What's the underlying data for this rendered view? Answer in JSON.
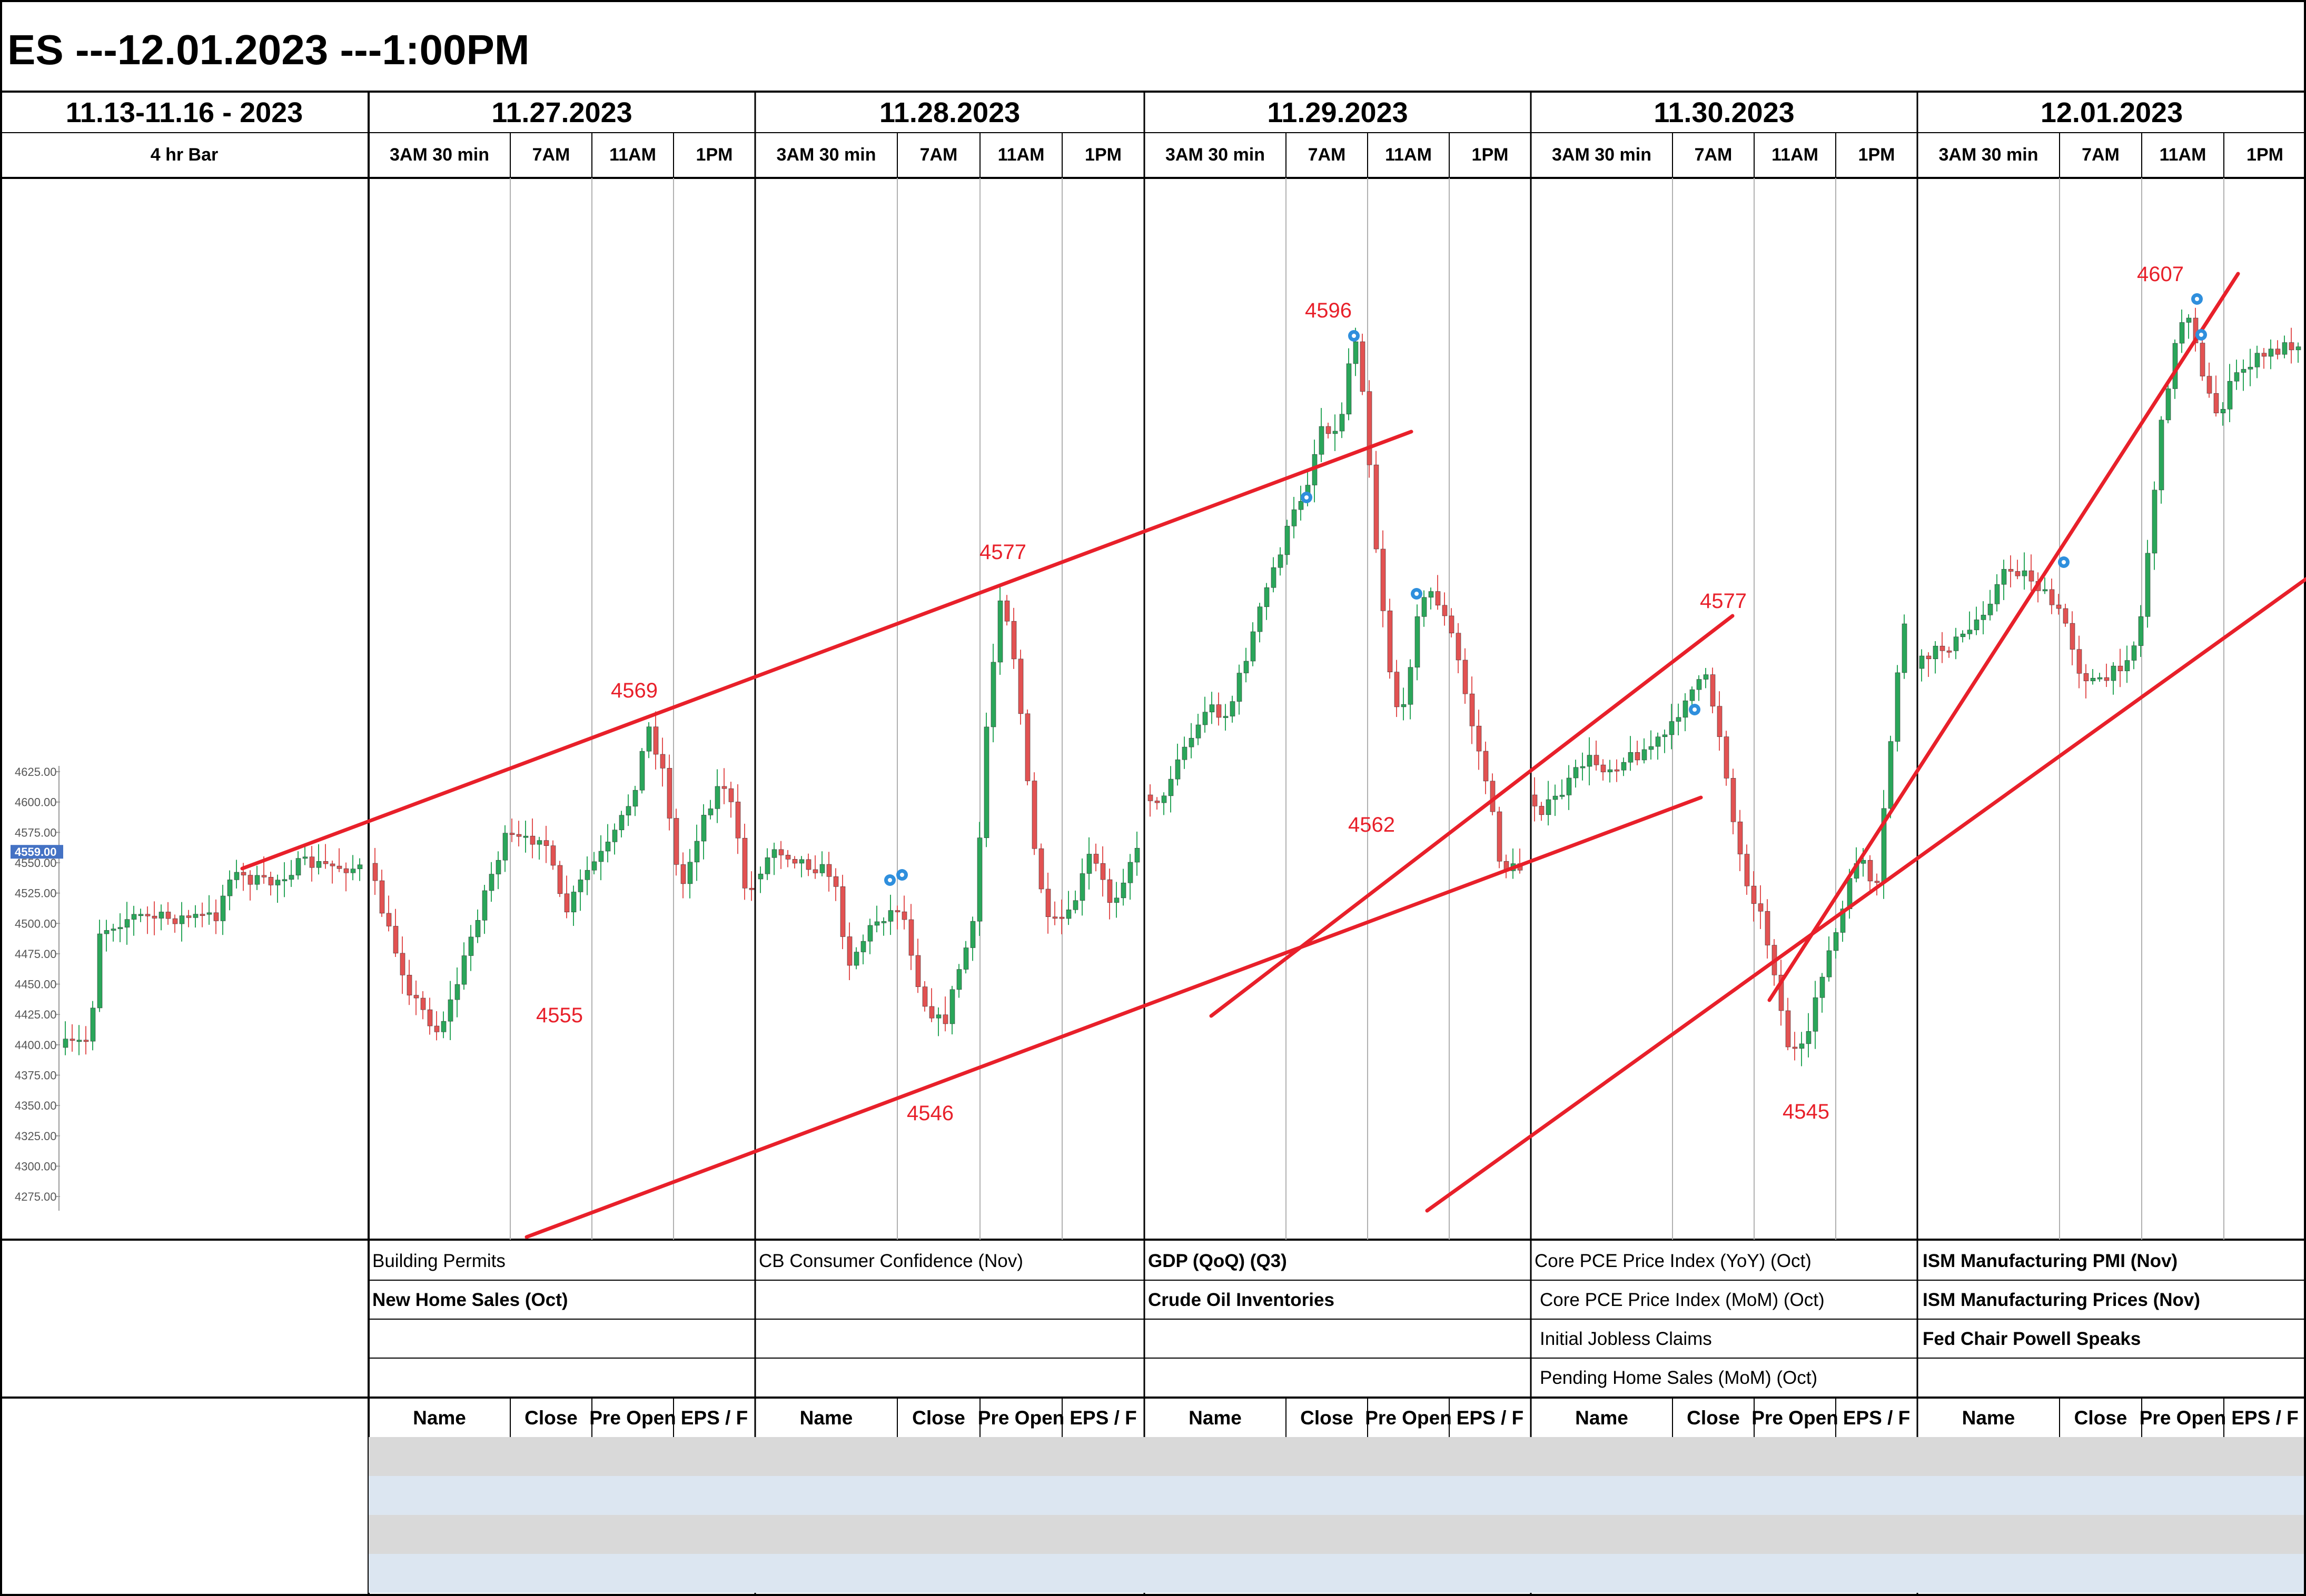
{
  "header": {
    "title": "ES ---12.01.2023 ---1:00PM"
  },
  "columns": [
    {
      "date": "11.13-11.16 - 2023",
      "sub": [
        "4 hr Bar"
      ]
    },
    {
      "date": "11.27.2023",
      "sub": [
        "3AM 30 min",
        "7AM",
        "11AM",
        "1PM"
      ]
    },
    {
      "date": "11.28.2023",
      "sub": [
        "3AM 30 min",
        "7AM",
        "11AM",
        "1PM"
      ]
    },
    {
      "date": "11.29.2023",
      "sub": [
        "3AM 30 min",
        "7AM",
        "11AM",
        "1PM"
      ]
    },
    {
      "date": "11.30.2023",
      "sub": [
        "3AM 30 min",
        "7AM",
        "11AM",
        "1PM"
      ]
    },
    {
      "date": "12.01.2023",
      "sub": [
        "3AM 30 min",
        "7AM",
        "11AM",
        "1PM"
      ]
    }
  ],
  "events": [
    {
      "items": [
        {
          "text": "Building Permits",
          "bold": false
        },
        {
          "text": "New Home Sales (Oct)",
          "bold": true
        }
      ]
    },
    {
      "items": [
        {
          "text": "CB Consumer Confidence (Nov)",
          "bold": false
        }
      ]
    },
    {
      "items": [
        {
          "text": "GDP (QoQ) (Q3)",
          "bold": true
        },
        {
          "text": "Crude Oil Inventories",
          "bold": true
        }
      ]
    },
    {
      "items": [
        {
          "text": "Core PCE Price Index (YoY) (Oct)",
          "bold": false
        },
        {
          "text": "Core PCE Price Index (MoM) (Oct)",
          "bold": false
        },
        {
          "text": "Initial Jobless Claims",
          "bold": false
        },
        {
          "text": "Pending Home Sales (MoM) (Oct)",
          "bold": false
        }
      ]
    },
    {
      "items": [
        {
          "text": "ISM Manufacturing PMI (Nov)",
          "bold": true
        },
        {
          "text": "ISM Manufacturing Prices (Nov)",
          "bold": true
        },
        {
          "text": "Fed Chair Powell Speaks",
          "bold": true
        }
      ]
    }
  ],
  "earnings_table": {
    "headers": [
      "Name",
      "Close",
      "Pre Open",
      "EPS / F"
    ]
  },
  "colors": {
    "up": "#2aa65a",
    "down": "#e25252",
    "trendline": "#e8202a",
    "annotation": "#e8202a",
    "price_badge": "#4472c4",
    "marker": "#2f8fdd"
  },
  "chart_data": {
    "type": "candlestick",
    "y_axis": {
      "ticks": [
        "4625.00",
        "4600.00",
        "4575.00",
        "4550.00",
        "4525.00",
        "4500.00",
        "4475.00",
        "4450.00",
        "4425.00",
        "4400.00",
        "4375.00",
        "4350.00",
        "4325.00",
        "4300.00",
        "4275.00"
      ],
      "current_price": "4559.00"
    },
    "annotations": [
      "4569",
      "4555",
      "4577",
      "4546",
      "4596",
      "4562",
      "4577",
      "4545",
      "4607"
    ],
    "trendlines": 5,
    "grid": false
  }
}
